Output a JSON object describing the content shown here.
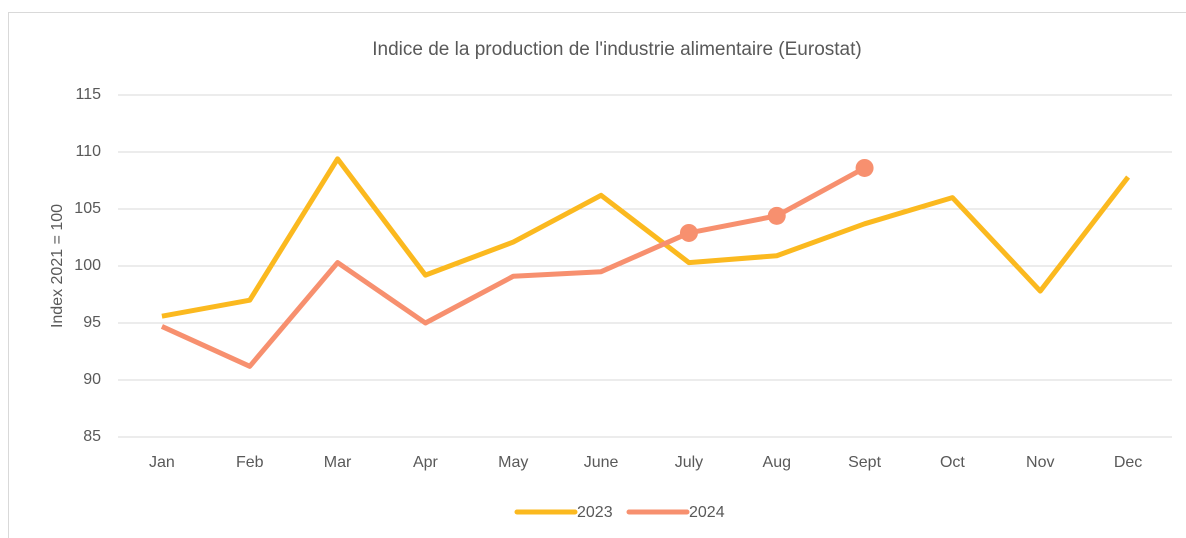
{
  "chart_data": {
    "type": "line",
    "title": "Indice de la production de l'industrie alimentaire (Eurostat)",
    "y_label": "Index 2021 = 100",
    "categories": [
      "Jan",
      "Feb",
      "Mar",
      "Apr",
      "May",
      "June",
      "July",
      "Aug",
      "Sept",
      "Oct",
      "Nov",
      "Dec"
    ],
    "series": [
      {
        "name": "2023",
        "color": "#fbb91f",
        "values": [
          95.6,
          97.0,
          109.4,
          99.2,
          102.1,
          106.2,
          100.3,
          100.9,
          103.7,
          106.0,
          97.8,
          107.8
        ]
      },
      {
        "name": "2024",
        "color": "#f7906f",
        "values": [
          94.7,
          91.2,
          100.3,
          95.0,
          99.1,
          99.5,
          102.9,
          104.4,
          108.6,
          null,
          null,
          null
        ],
        "marker_indices": [
          6,
          7,
          8
        ]
      }
    ],
    "ylim": [
      85,
      115
    ],
    "yticks": [
      85,
      90,
      95,
      100,
      105,
      110,
      115
    ],
    "grid": true,
    "legend": "bottom"
  }
}
